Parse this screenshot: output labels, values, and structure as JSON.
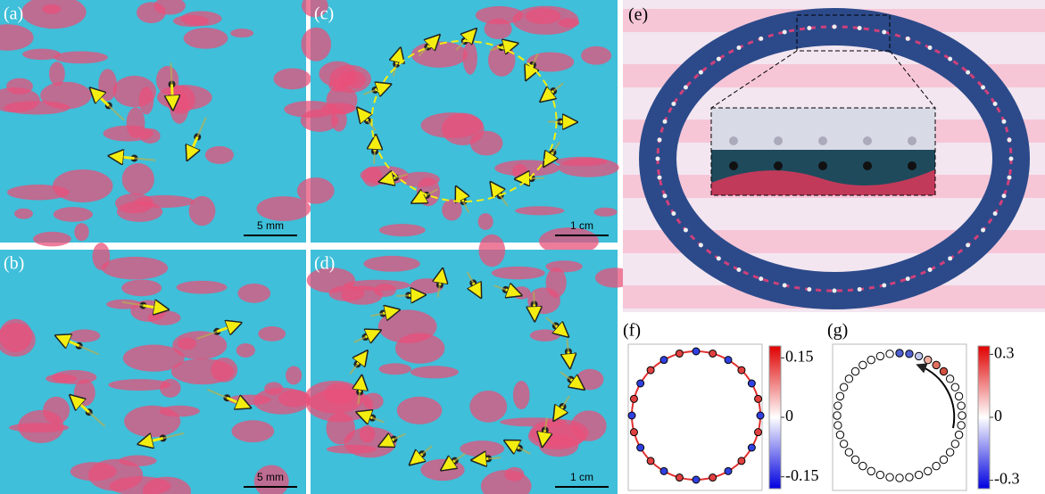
{
  "panels": {
    "a": {
      "label": "(a)",
      "scale": "5 mm"
    },
    "b": {
      "label": "(b)",
      "scale": "5 mm"
    },
    "c": {
      "label": "(c)",
      "scale": "1 cm"
    },
    "d": {
      "label": "(d)",
      "scale": "1 cm"
    },
    "e": {
      "label": "(e)"
    },
    "f": {
      "label": "(f)",
      "colorbar": {
        "lim": [
          -0.18,
          0.18
        ],
        "ticks": [
          0.15,
          0,
          -0.15
        ]
      }
    },
    "g": {
      "label": "(g)",
      "colorbar": {
        "lim": [
          -0.34,
          0.34
        ],
        "ticks": [
          0.3,
          0,
          -0.3
        ]
      }
    }
  }
}
